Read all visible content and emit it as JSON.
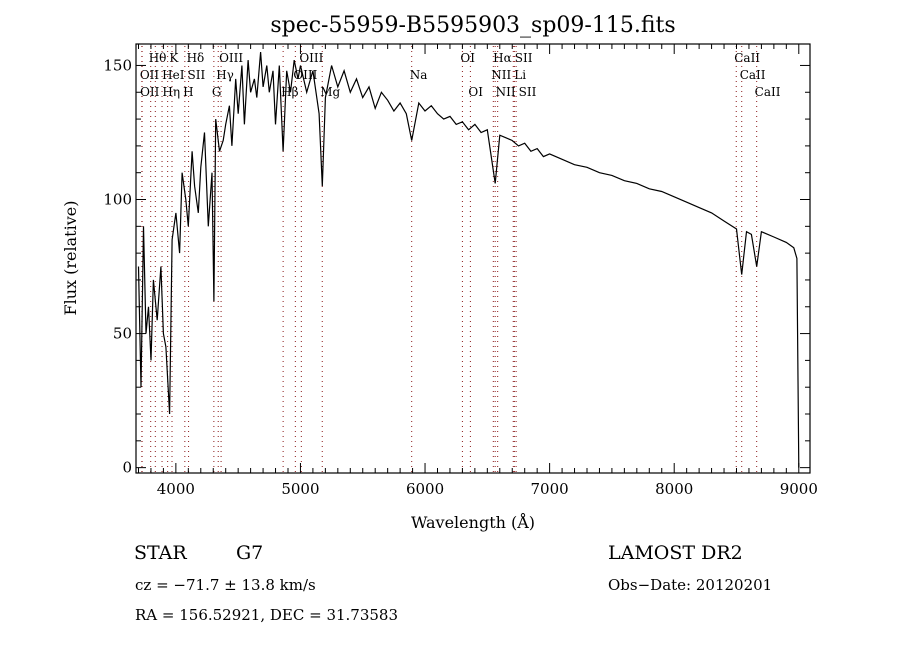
{
  "chart_data": {
    "type": "line",
    "title": "spec-55959-B5595903_sp09-115.fits",
    "xlabel": "Wavelength (Å)",
    "ylabel": "Flux (relative)",
    "xlim": [
      3680,
      9090
    ],
    "ylim": [
      -2,
      158
    ],
    "xticks": [
      4000,
      5000,
      6000,
      7000,
      8000,
      9000
    ],
    "yticks": [
      0,
      50,
      100,
      150
    ],
    "grid": false,
    "series": [
      {
        "name": "spectrum",
        "x": [
          3700,
          3720,
          3740,
          3760,
          3780,
          3800,
          3820,
          3850,
          3880,
          3900,
          3920,
          3950,
          3970,
          4000,
          4030,
          4050,
          4080,
          4100,
          4130,
          4150,
          4180,
          4200,
          4230,
          4260,
          4290,
          4305,
          4320,
          4350,
          4380,
          4400,
          4430,
          4450,
          4480,
          4500,
          4530,
          4550,
          4580,
          4600,
          4630,
          4650,
          4680,
          4700,
          4730,
          4750,
          4780,
          4800,
          4830,
          4861,
          4890,
          4920,
          4950,
          4980,
          5000,
          5050,
          5100,
          5150,
          5175,
          5200,
          5250,
          5300,
          5350,
          5400,
          5450,
          5500,
          5550,
          5600,
          5650,
          5700,
          5750,
          5800,
          5850,
          5893,
          5950,
          6000,
          6050,
          6100,
          6150,
          6200,
          6250,
          6300,
          6350,
          6400,
          6450,
          6500,
          6563,
          6600,
          6650,
          6700,
          6750,
          6800,
          6850,
          6900,
          6950,
          7000,
          7100,
          7200,
          7300,
          7400,
          7500,
          7600,
          7700,
          7800,
          7900,
          8000,
          8100,
          8200,
          8300,
          8400,
          8500,
          8542,
          8580,
          8620,
          8662,
          8700,
          8800,
          8900,
          8960,
          8985,
          9000
        ],
        "y": [
          75,
          30,
          90,
          50,
          60,
          40,
          70,
          55,
          75,
          50,
          45,
          20,
          85,
          95,
          80,
          110,
          100,
          90,
          118,
          105,
          95,
          112,
          125,
          90,
          110,
          62,
          130,
          118,
          122,
          128,
          135,
          120,
          145,
          132,
          150,
          128,
          152,
          140,
          145,
          138,
          155,
          142,
          150,
          140,
          148,
          128,
          150,
          118,
          148,
          140,
          152,
          145,
          150,
          140,
          148,
          132,
          105,
          138,
          150,
          142,
          148,
          140,
          145,
          138,
          142,
          134,
          140,
          137,
          133,
          136,
          132,
          122,
          136,
          133,
          135,
          132,
          130,
          131,
          128,
          129,
          126,
          128,
          125,
          126,
          106,
          124,
          123,
          122,
          120,
          121,
          118,
          119,
          116,
          117,
          115,
          113,
          112,
          110,
          109,
          107,
          106,
          104,
          103,
          101,
          99,
          97,
          95,
          92,
          89,
          72,
          88,
          87,
          75,
          88,
          86,
          84,
          82,
          78,
          0
        ]
      }
    ],
    "line_markers": [
      {
        "label": "Hθ",
        "wavelength": 3798,
        "row": 0
      },
      {
        "label": "K",
        "wavelength": 3934,
        "row": 0
      },
      {
        "label": "Hδ",
        "wavelength": 4102,
        "row": 0
      },
      {
        "label": "OIII",
        "wavelength": 4363,
        "row": 0
      },
      {
        "label": "OIII",
        "wavelength": 5007,
        "row": 0
      },
      {
        "label": "OI",
        "wavelength": 6300,
        "row": 0
      },
      {
        "label": "Hα",
        "wavelength": 6563,
        "row": 0
      },
      {
        "label": "SII",
        "wavelength": 6717,
        "row": 0
      },
      {
        "label": "CaII",
        "wavelength": 8498,
        "row": 0
      },
      {
        "label": "OII",
        "wavelength": 3727,
        "row": 1
      },
      {
        "label": "HeI",
        "wavelength": 3889,
        "row": 1
      },
      {
        "label": "SII",
        "wavelength": 4072,
        "row": 1
      },
      {
        "label": "Hγ",
        "wavelength": 4340,
        "row": 1
      },
      {
        "label": "OIII",
        "wavelength": 4959,
        "row": 1
      },
      {
        "label": "Na",
        "wavelength": 5893,
        "row": 1
      },
      {
        "label": "NII",
        "wavelength": 6548,
        "row": 1
      },
      {
        "label": "Li",
        "wavelength": 6708,
        "row": 1
      },
      {
        "label": "CaII",
        "wavelength": 8542,
        "row": 1
      },
      {
        "label": "OII",
        "wavelength": 3729,
        "row": 2
      },
      {
        "label": "Hη",
        "wavelength": 3835,
        "row": 2
      },
      {
        "label": "H",
        "wavelength": 3969,
        "row": 2
      },
      {
        "label": "G",
        "wavelength": 4305,
        "row": 2
      },
      {
        "label": "Hβ",
        "wavelength": 4861,
        "row": 2
      },
      {
        "label": "Mg",
        "wavelength": 5175,
        "row": 2
      },
      {
        "label": "OI",
        "wavelength": 6364,
        "row": 2
      },
      {
        "label": "NII",
        "wavelength": 6583,
        "row": 2
      },
      {
        "label": "SII",
        "wavelength": 6731,
        "row": 2
      },
      {
        "label": "CaII",
        "wavelength": 8662,
        "row": 2
      }
    ],
    "marker_color": "#8b1a1a",
    "line_color": "#000000"
  },
  "info": {
    "object_class": "STAR",
    "subclass": "G7",
    "survey": "LAMOST DR2",
    "cz": "cz = −71.7 ± 13.8 km/s",
    "obs_date": "Obs−Date: 20120201",
    "coords": "RA = 156.52921, DEC =  31.73583"
  }
}
